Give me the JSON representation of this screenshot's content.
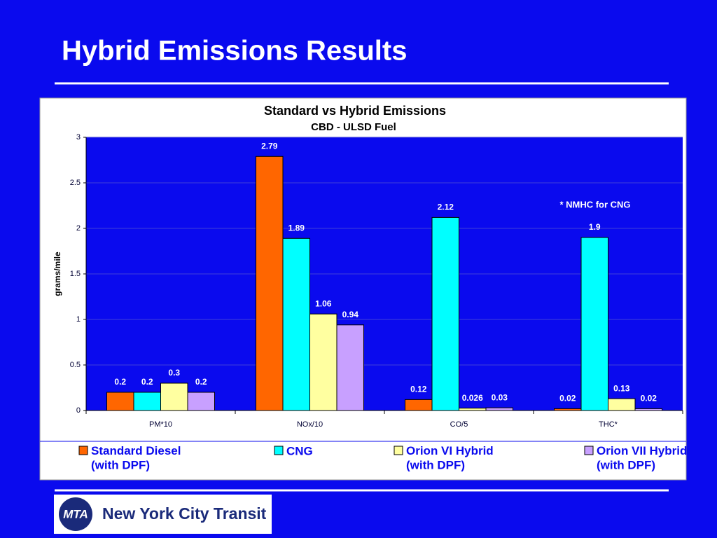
{
  "slide_title": "Hybrid Emissions Results",
  "chart_data": {
    "type": "bar",
    "title": "Standard vs Hybrid Emissions",
    "subtitle": "CBD - ULSD Fuel",
    "y_label": "grams/mile",
    "annotation": "* NMHC for CNG",
    "categories": [
      "PM*10",
      "NOx/10",
      "CO/5",
      "THC*"
    ],
    "series": [
      {
        "name": "Standard Diesel\n(with DPF)",
        "color": "#ff6600",
        "values": [
          0.2,
          2.79,
          0.12,
          0.02
        ]
      },
      {
        "name": "CNG",
        "color": "#00ffff",
        "values": [
          0.2,
          1.89,
          2.12,
          1.9
        ]
      },
      {
        "name": "Orion VI Hybrid\n(with DPF)",
        "color": "#ffffa0",
        "values": [
          0.3,
          1.06,
          0.026,
          0.13
        ]
      },
      {
        "name": "Orion VII Hybrid\n(with DPF)",
        "color": "#c8a0ff",
        "values": [
          0.2,
          0.94,
          0.03,
          0.02
        ]
      }
    ],
    "ylim": [
      0,
      3
    ],
    "yticks": [
      0,
      0.5,
      1,
      1.5,
      2,
      2.5,
      3
    ],
    "grid": true,
    "legend": "bottom"
  },
  "logo": {
    "mark": "MTA",
    "text": "New York City Transit"
  }
}
